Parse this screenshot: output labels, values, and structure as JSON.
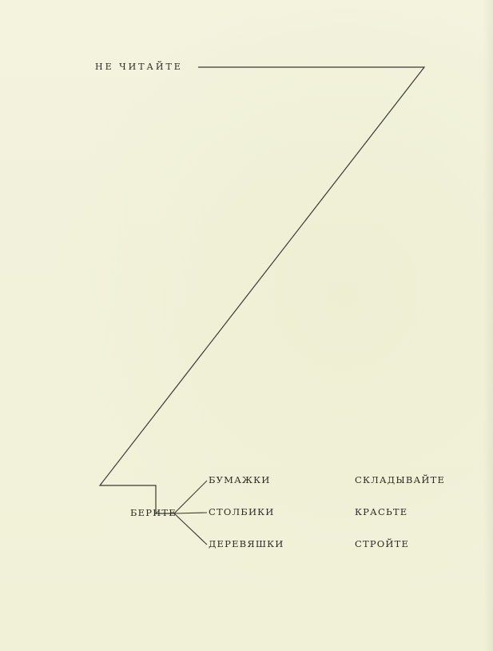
{
  "title": "НЕ ЧИТАЙТЕ",
  "take": "БЕРИТЕ",
  "objects": [
    "БУМАЖКИ",
    "СТОЛБИКИ",
    "ДЕРЕВЯШКИ"
  ],
  "actions": [
    "СКЛАДЫВАЙТЕ",
    "КРАСЬТЕ",
    "СТРОЙТЕ"
  ],
  "colors": {
    "paper": "#f4f3dc",
    "ink": "#2c2b26"
  }
}
